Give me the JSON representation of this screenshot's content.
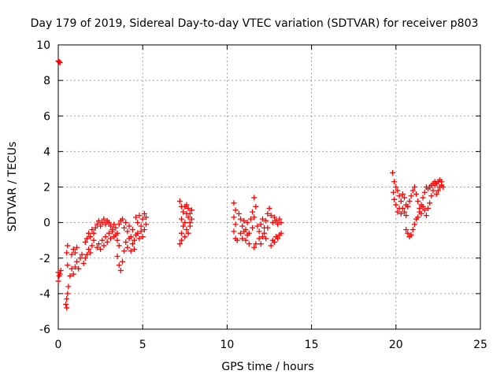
{
  "chart_data": {
    "type": "scatter",
    "title": "Day 179 of 2019, Sidereal Day-to-day VTEC variation (SDTVAR) for receiver p803",
    "xlabel": "GPS time / hours",
    "ylabel": "SDTVAR / TECUs",
    "xlim": [
      0,
      25
    ],
    "ylim": [
      -6,
      10
    ],
    "xticks": [
      0,
      5,
      10,
      15,
      20,
      25
    ],
    "yticks": [
      -6,
      -4,
      -2,
      0,
      2,
      4,
      6,
      8,
      10
    ],
    "grid": true,
    "marker": "plus",
    "color": "#ff0000",
    "series": [
      {
        "points": [
          [
            0.0,
            9.1
          ],
          [
            0.05,
            9.05
          ],
          [
            0.1,
            9.0
          ],
          [
            0.0,
            -2.8
          ],
          [
            0.05,
            -3.0
          ],
          [
            0.1,
            -2.9
          ],
          [
            0.15,
            -2.7
          ],
          [
            0.0,
            -3.3
          ],
          [
            0.45,
            -4.6
          ],
          [
            0.5,
            -4.3
          ],
          [
            0.55,
            -4.0
          ],
          [
            0.5,
            -4.8
          ],
          [
            0.6,
            -3.6
          ],
          [
            0.55,
            -2.4
          ],
          [
            0.5,
            -1.7
          ],
          [
            0.55,
            -1.3
          ],
          [
            0.7,
            -3.0
          ],
          [
            0.8,
            -2.6
          ],
          [
            0.9,
            -2.9
          ],
          [
            1.0,
            -2.5
          ],
          [
            1.1,
            -2.2
          ],
          [
            1.2,
            -2.6
          ],
          [
            1.3,
            -2.0
          ],
          [
            1.4,
            -1.8
          ],
          [
            0.8,
            -1.8
          ],
          [
            0.9,
            -1.5
          ],
          [
            1.0,
            -1.7
          ],
          [
            1.1,
            -1.4
          ],
          [
            1.5,
            -2.3
          ],
          [
            1.6,
            -2.0
          ],
          [
            1.7,
            -1.8
          ],
          [
            1.8,
            -1.5
          ],
          [
            1.9,
            -1.7
          ],
          [
            2.0,
            -1.3
          ],
          [
            2.1,
            -1.0
          ],
          [
            1.6,
            -1.1
          ],
          [
            1.7,
            -0.9
          ],
          [
            1.8,
            -0.6
          ],
          [
            1.9,
            -0.8
          ],
          [
            2.0,
            -0.4
          ],
          [
            2.1,
            -0.6
          ],
          [
            2.2,
            -0.3
          ],
          [
            2.3,
            -0.1
          ],
          [
            2.4,
            0.1
          ],
          [
            2.5,
            -0.2
          ],
          [
            2.6,
            0.0
          ],
          [
            2.7,
            0.2
          ],
          [
            2.8,
            -0.1
          ],
          [
            2.9,
            0.1
          ],
          [
            2.3,
            -1.4
          ],
          [
            2.4,
            -1.2
          ],
          [
            2.5,
            -1.5
          ],
          [
            2.6,
            -1.0
          ],
          [
            2.7,
            -1.3
          ],
          [
            2.8,
            -0.8
          ],
          [
            2.9,
            -1.1
          ],
          [
            3.0,
            -0.6
          ],
          [
            3.1,
            -0.9
          ],
          [
            3.2,
            -0.5
          ],
          [
            3.3,
            -0.8
          ],
          [
            3.4,
            -0.3
          ],
          [
            3.5,
            -0.6
          ],
          [
            3.6,
            -0.1
          ],
          [
            3.0,
            0.0
          ],
          [
            3.1,
            -0.2
          ],
          [
            3.2,
            -0.4
          ],
          [
            3.3,
            -0.1
          ],
          [
            3.4,
            -0.7
          ],
          [
            3.5,
            -1.0
          ],
          [
            3.6,
            -1.3
          ],
          [
            3.5,
            -1.9
          ],
          [
            3.6,
            -2.4
          ],
          [
            3.7,
            -2.7
          ],
          [
            3.8,
            -2.2
          ],
          [
            3.9,
            -1.6
          ],
          [
            3.7,
            0.1
          ],
          [
            3.8,
            0.2
          ],
          [
            3.9,
            -0.3
          ],
          [
            4.0,
            0.0
          ],
          [
            4.1,
            -0.5
          ],
          [
            4.2,
            -0.2
          ],
          [
            4.3,
            -0.8
          ],
          [
            4.4,
            -0.4
          ],
          [
            4.5,
            -1.0
          ],
          [
            4.0,
            -1.1
          ],
          [
            4.1,
            -1.4
          ],
          [
            4.2,
            -0.9
          ],
          [
            4.3,
            -1.6
          ],
          [
            4.4,
            -1.2
          ],
          [
            4.5,
            -1.5
          ],
          [
            4.6,
            -0.7
          ],
          [
            4.6,
            0.3
          ],
          [
            4.7,
            0.0
          ],
          [
            4.8,
            0.4
          ],
          [
            4.9,
            -0.2
          ],
          [
            5.0,
            0.2
          ],
          [
            5.1,
            0.5
          ],
          [
            5.2,
            0.3
          ],
          [
            4.7,
            -0.6
          ],
          [
            4.8,
            -0.9
          ],
          [
            4.9,
            -0.5
          ],
          [
            5.0,
            -0.8
          ],
          [
            5.1,
            -0.4
          ],
          [
            5.2,
            -0.1
          ],
          [
            7.2,
            1.2
          ],
          [
            7.3,
            0.9
          ],
          [
            7.4,
            0.6
          ],
          [
            7.3,
            0.2
          ],
          [
            7.4,
            -0.2
          ],
          [
            7.3,
            -0.6
          ],
          [
            7.2,
            -1.2
          ],
          [
            7.3,
            -1.0
          ],
          [
            7.5,
            0.9
          ],
          [
            7.6,
            0.5
          ],
          [
            7.5,
            0.0
          ],
          [
            7.6,
            -0.4
          ],
          [
            7.5,
            -0.8
          ],
          [
            7.7,
            -0.6
          ],
          [
            7.8,
            -0.2
          ],
          [
            7.6,
            1.0
          ],
          [
            7.7,
            0.8
          ],
          [
            7.8,
            0.5
          ],
          [
            7.9,
            0.7
          ],
          [
            7.9,
            0.2
          ],
          [
            7.8,
            0.0
          ],
          [
            7.7,
            0.3
          ],
          [
            10.4,
            1.1
          ],
          [
            10.5,
            0.7
          ],
          [
            10.4,
            0.3
          ],
          [
            10.5,
            -0.1
          ],
          [
            10.4,
            -0.5
          ],
          [
            10.5,
            -0.9
          ],
          [
            10.6,
            -1.0
          ],
          [
            10.7,
            0.5
          ],
          [
            10.8,
            0.2
          ],
          [
            10.9,
            -0.2
          ],
          [
            11.0,
            0.1
          ],
          [
            11.1,
            -0.4
          ],
          [
            11.2,
            0.0
          ],
          [
            11.3,
            -0.6
          ],
          [
            10.8,
            -0.6
          ],
          [
            10.9,
            -0.9
          ],
          [
            11.0,
            -0.5
          ],
          [
            11.1,
            -1.0
          ],
          [
            11.2,
            -0.7
          ],
          [
            11.3,
            -1.2
          ],
          [
            11.4,
            0.2
          ],
          [
            11.5,
            0.6
          ],
          [
            11.6,
            1.4
          ],
          [
            11.7,
            0.9
          ],
          [
            11.6,
            0.3
          ],
          [
            11.5,
            -0.3
          ],
          [
            11.6,
            -1.4
          ],
          [
            11.7,
            -1.2
          ],
          [
            11.8,
            -0.2
          ],
          [
            11.9,
            -0.5
          ],
          [
            12.0,
            -0.1
          ],
          [
            12.1,
            0.2
          ],
          [
            12.2,
            -0.3
          ],
          [
            12.3,
            0.1
          ],
          [
            12.4,
            0.5
          ],
          [
            11.9,
            -0.9
          ],
          [
            12.0,
            -1.2
          ],
          [
            12.1,
            -0.8
          ],
          [
            12.2,
            -0.6
          ],
          [
            12.3,
            -0.9
          ],
          [
            12.4,
            -0.3
          ],
          [
            12.5,
            0.8
          ],
          [
            12.6,
            0.4
          ],
          [
            12.7,
            0.0
          ],
          [
            12.8,
            0.3
          ],
          [
            12.9,
            0.1
          ],
          [
            13.0,
            -0.1
          ],
          [
            13.1,
            0.2
          ],
          [
            13.2,
            0.0
          ],
          [
            12.6,
            -1.3
          ],
          [
            12.7,
            -1.0
          ],
          [
            12.8,
            -1.1
          ],
          [
            12.9,
            -0.8
          ],
          [
            13.0,
            -0.9
          ],
          [
            13.1,
            -0.7
          ],
          [
            13.2,
            -0.6
          ],
          [
            19.8,
            2.8
          ],
          [
            19.9,
            2.3
          ],
          [
            19.85,
            1.7
          ],
          [
            19.9,
            1.3
          ],
          [
            20.0,
            2.0
          ],
          [
            20.1,
            1.8
          ],
          [
            20.2,
            1.5
          ],
          [
            20.0,
            1.0
          ],
          [
            20.1,
            0.6
          ],
          [
            20.2,
            0.8
          ],
          [
            20.3,
            1.2
          ],
          [
            20.4,
            1.6
          ],
          [
            20.5,
            1.4
          ],
          [
            20.6,
            1.0
          ],
          [
            20.3,
            0.5
          ],
          [
            20.4,
            0.8
          ],
          [
            20.5,
            0.6
          ],
          [
            20.6,
            0.4
          ],
          [
            20.7,
            0.9
          ],
          [
            20.8,
            1.2
          ],
          [
            20.9,
            1.5
          ],
          [
            20.6,
            -0.4
          ],
          [
            20.7,
            -0.6
          ],
          [
            20.8,
            -0.8
          ],
          [
            20.9,
            -0.7
          ],
          [
            21.0,
            -0.4
          ],
          [
            21.1,
            -0.1
          ],
          [
            21.2,
            0.2
          ],
          [
            21.0,
            1.8
          ],
          [
            21.1,
            2.0
          ],
          [
            21.2,
            1.6
          ],
          [
            21.3,
            1.2
          ],
          [
            21.4,
            0.8
          ],
          [
            21.5,
            0.5
          ],
          [
            21.6,
            0.9
          ],
          [
            21.3,
            0.3
          ],
          [
            21.4,
            0.6
          ],
          [
            21.5,
            1.0
          ],
          [
            21.6,
            1.4
          ],
          [
            21.7,
            1.7
          ],
          [
            21.8,
            2.0
          ],
          [
            21.9,
            1.9
          ],
          [
            21.7,
            0.7
          ],
          [
            21.8,
            0.4
          ],
          [
            21.9,
            0.8
          ],
          [
            22.0,
            1.1
          ],
          [
            22.1,
            1.5
          ],
          [
            22.2,
            1.8
          ],
          [
            22.3,
            2.1
          ],
          [
            22.0,
            2.0
          ],
          [
            22.1,
            2.1
          ],
          [
            22.2,
            2.2
          ],
          [
            22.3,
            2.3
          ],
          [
            22.4,
            2.2
          ],
          [
            22.5,
            2.3
          ],
          [
            22.6,
            2.4
          ],
          [
            22.7,
            2.3
          ],
          [
            22.8,
            2.0
          ],
          [
            22.4,
            1.6
          ],
          [
            22.5,
            1.8
          ],
          [
            22.6,
            2.0
          ],
          [
            22.7,
            2.1
          ]
        ]
      }
    ]
  }
}
